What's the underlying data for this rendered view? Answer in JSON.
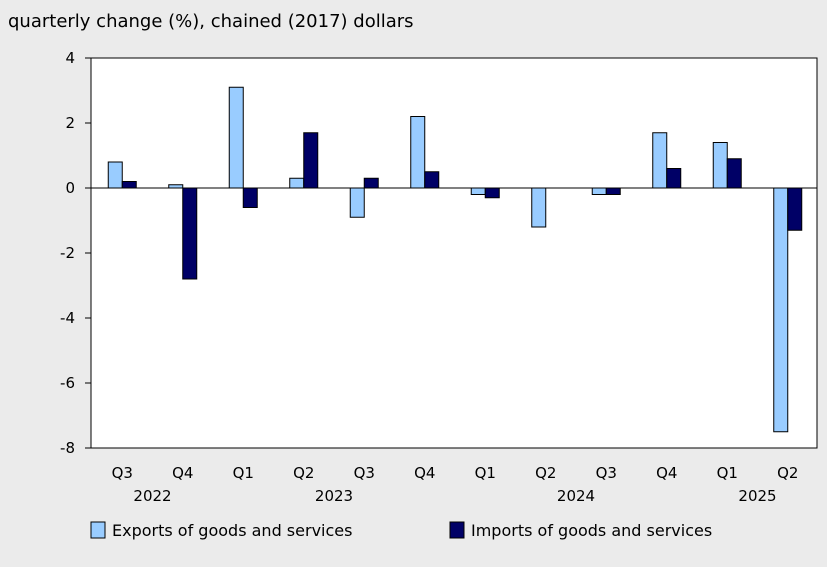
{
  "chart_data": {
    "type": "bar",
    "title": "quarterly change (%), chained (2017) dollars",
    "xlabel": "",
    "ylabel": "",
    "ylim": [
      -8,
      4
    ],
    "yticks": [
      4,
      2,
      0,
      -2,
      -4,
      -6,
      -8
    ],
    "categories": [
      "Q3",
      "Q4",
      "Q1",
      "Q2",
      "Q3",
      "Q4",
      "Q1",
      "Q2",
      "Q3",
      "Q4",
      "Q1",
      "Q2"
    ],
    "year_groups": [
      {
        "label": "2022",
        "start": 0,
        "end": 1
      },
      {
        "label": "2023",
        "start": 2,
        "end": 5
      },
      {
        "label": "2024",
        "start": 6,
        "end": 9
      },
      {
        "label": "2025",
        "start": 10,
        "end": 11
      }
    ],
    "series": [
      {
        "name": "Exports of goods and services",
        "color": "#99ccff",
        "values": [
          0.8,
          0.1,
          3.1,
          0.3,
          -0.9,
          2.2,
          -0.2,
          -1.2,
          -0.2,
          1.7,
          1.4,
          -7.5
        ]
      },
      {
        "name": "Imports of goods and services",
        "color": "#000066",
        "values": [
          0.2,
          -2.8,
          -0.6,
          1.7,
          0.3,
          0.5,
          -0.3,
          0.0,
          -0.2,
          0.6,
          0.9,
          -1.3
        ]
      }
    ],
    "grid": false,
    "legend_position": "bottom-left"
  }
}
